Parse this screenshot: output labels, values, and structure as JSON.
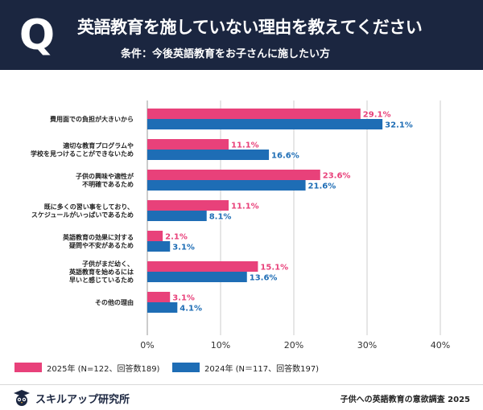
{
  "header": {
    "q_label": "Q",
    "title": "英語教育を施していない理由を教えてください",
    "subtitle": "条件：今後英語教育をお子さんに施したい方"
  },
  "colors": {
    "header_bg": "#1b2640",
    "series_2025": "#e8417a",
    "series_2024": "#1e6db5",
    "grid": "#cccccc",
    "axis": "#999999"
  },
  "chart_data": {
    "type": "bar",
    "orientation": "horizontal",
    "categories": [
      [
        "費用面での負担が大きいから"
      ],
      [
        "適切な教育プログラムや",
        "学校を見つけることができないため"
      ],
      [
        "子供の興味や適性が",
        "不明確であるため"
      ],
      [
        "既に多くの習い事をしており、",
        "スケジュールがいっぱいであるため"
      ],
      [
        "英語教育の効果に対する",
        "疑問や不安があるため"
      ],
      [
        "子供がまだ幼く、",
        "英語教育を始めるには",
        "早いと感じているため"
      ],
      [
        "その他の理由"
      ]
    ],
    "series": [
      {
        "name": "2025年 (N=122、回答数189)",
        "values": [
          29.1,
          11.1,
          23.6,
          11.1,
          2.1,
          15.1,
          3.1
        ],
        "labels": [
          "29.1%",
          "11.1%",
          "23.6%",
          "11.1%",
          "2.1%",
          "15.1%",
          "3.1%"
        ]
      },
      {
        "name": "2024年 (N＝117、回答数197)",
        "values": [
          32.1,
          16.6,
          21.6,
          8.1,
          3.1,
          13.6,
          4.1
        ],
        "labels": [
          "32.1%",
          "16.6%",
          "21.6%",
          "8.1%",
          "3.1%",
          "13.6%",
          "4.1%"
        ]
      }
    ],
    "xlim": [
      0,
      40
    ],
    "xticks": [
      0,
      10,
      20,
      30,
      40
    ],
    "xtick_labels": [
      "0%",
      "10%",
      "20%",
      "30%",
      "40%"
    ],
    "grid": true,
    "legend_position": "bottom-left"
  },
  "legend": {
    "label_2025": "2025年 (N=122、回答数189)",
    "label_2024": "2024年 (N＝117、回答数197)"
  },
  "footer": {
    "brand": "スキルアップ研究所",
    "brand_icon": "graduate-owl-icon",
    "source": "子供への英語教育の意欲調査 2025"
  }
}
